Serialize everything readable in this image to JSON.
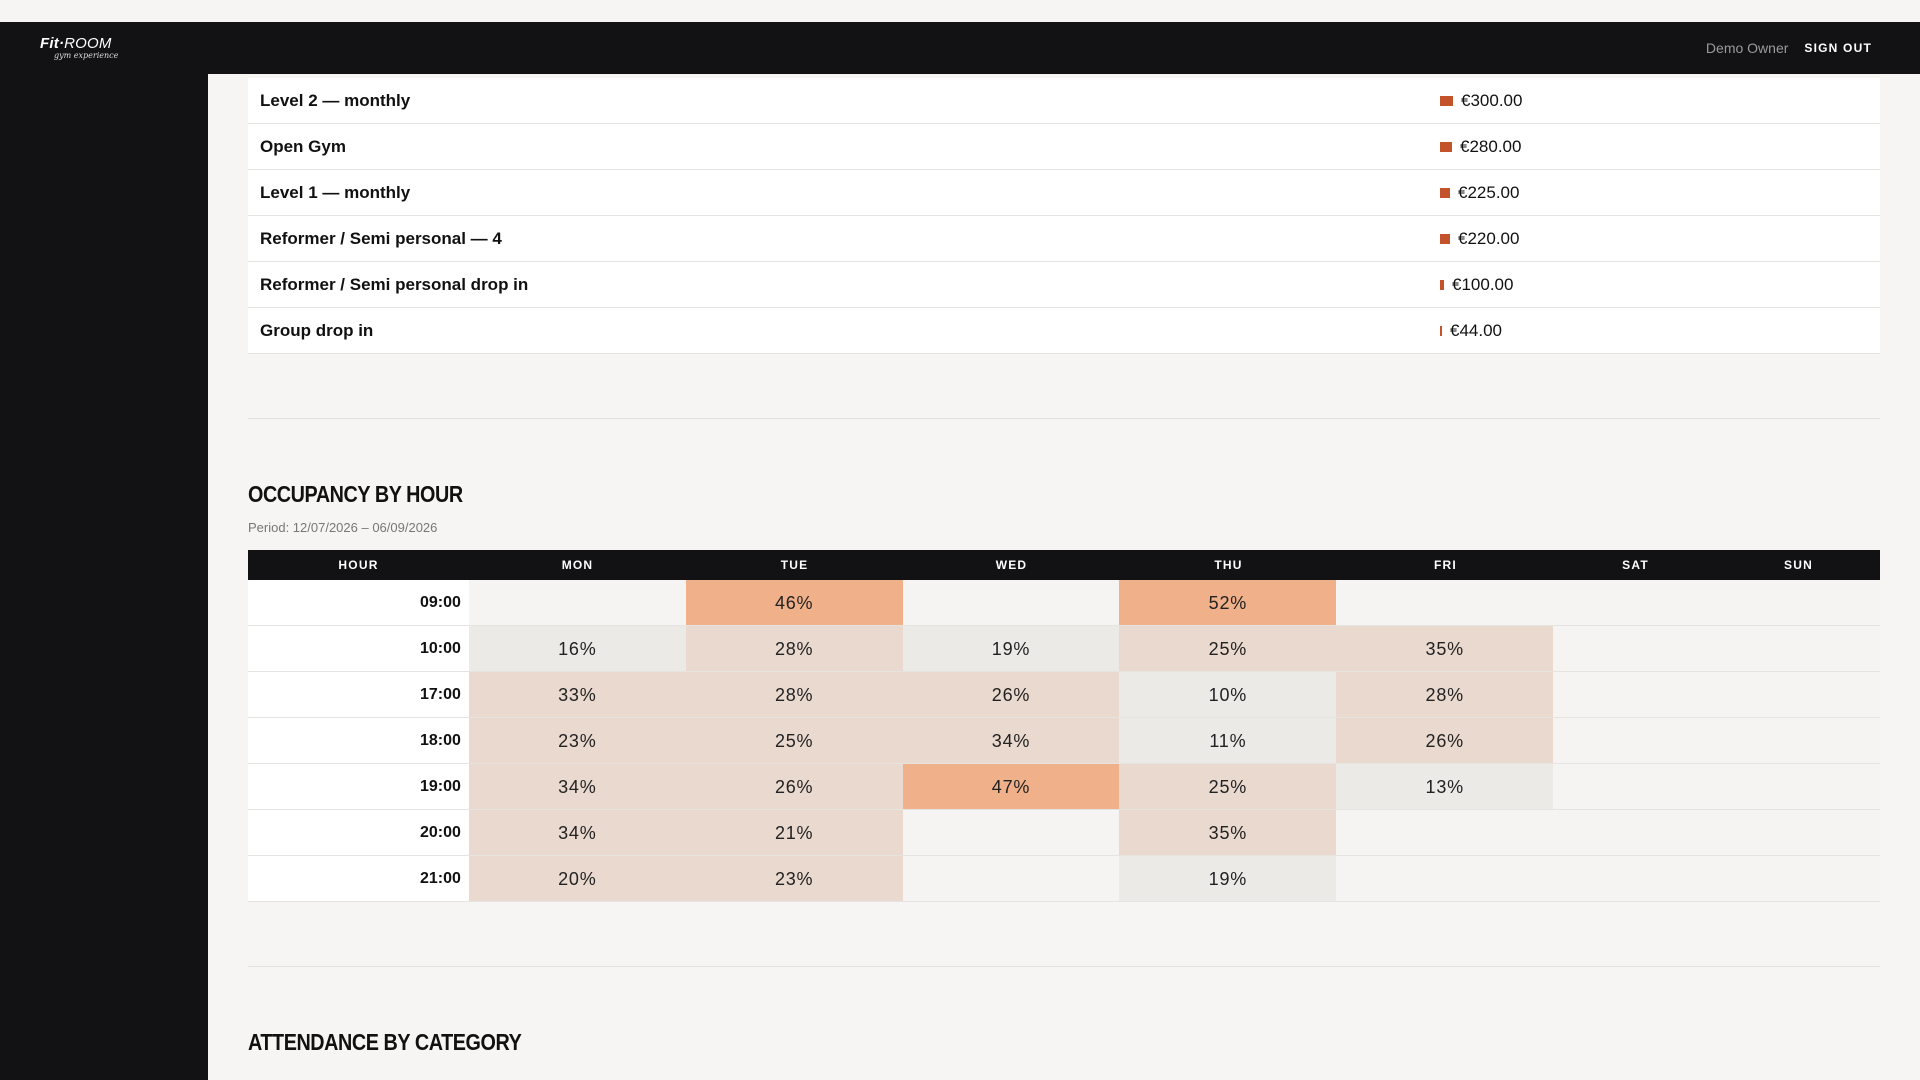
{
  "header": {
    "logo_main": "Fit",
    "logo_room": "ROOM",
    "logo_sub": "gym experience",
    "user_name": "Demo Owner",
    "signout_label": "SIGN OUT"
  },
  "revenue": {
    "rows": [
      {
        "name": "Level 2 — monthly",
        "value": "€300.00",
        "amount": 300
      },
      {
        "name": "Open Gym",
        "value": "€280.00",
        "amount": 280
      },
      {
        "name": "Level 1 — monthly",
        "value": "€225.00",
        "amount": 225
      },
      {
        "name": "Reformer / Semi personal — 4",
        "value": "€220.00",
        "amount": 220
      },
      {
        "name": "Reformer / Semi personal drop in",
        "value": "€100.00",
        "amount": 100
      },
      {
        "name": "Group drop in",
        "value": "€44.00",
        "amount": 44
      }
    ],
    "bar_color": "#c2532a"
  },
  "occupancy": {
    "title": "OCCUPANCY BY HOUR",
    "period": "Period: 12/07/2026 – 06/09/2026",
    "columns": [
      "HOUR",
      "MON",
      "TUE",
      "WED",
      "THU",
      "FRI",
      "SAT",
      "SUN"
    ],
    "rows": [
      {
        "hour": "09:00",
        "cells": [
          "",
          "46%",
          "",
          "52%",
          ""
        ]
      },
      {
        "hour": "10:00",
        "cells": [
          "16%",
          "28%",
          "19%",
          "25%",
          "35%"
        ]
      },
      {
        "hour": "17:00",
        "cells": [
          "33%",
          "28%",
          "26%",
          "10%",
          "28%"
        ]
      },
      {
        "hour": "18:00",
        "cells": [
          "23%",
          "25%",
          "34%",
          "11%",
          "26%"
        ]
      },
      {
        "hour": "19:00",
        "cells": [
          "34%",
          "26%",
          "47%",
          "25%",
          "13%"
        ]
      },
      {
        "hour": "20:00",
        "cells": [
          "34%",
          "21%",
          "",
          "35%",
          ""
        ]
      },
      {
        "hour": "21:00",
        "cells": [
          "20%",
          "23%",
          "",
          "19%",
          ""
        ]
      }
    ],
    "colors": {
      "high": "#f0b08a",
      "mid": "#ead9cf",
      "low": "#ebeae7",
      "empty": "#f5f4f2"
    }
  },
  "attendance": {
    "title": "ATTENDANCE BY CATEGORY"
  }
}
